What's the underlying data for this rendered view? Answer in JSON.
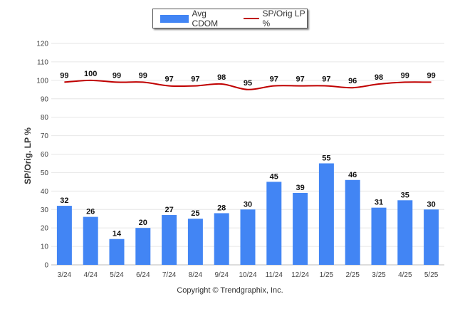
{
  "chart_data": {
    "type": "bar",
    "title": "",
    "xlabel": "",
    "ylabel": "SP/Orig. LP %",
    "ylim": [
      0,
      120
    ],
    "yticks": [
      0,
      10,
      20,
      30,
      40,
      50,
      60,
      70,
      80,
      90,
      100,
      110,
      120
    ],
    "grid": true,
    "legend_position": "top-center",
    "categories": [
      "3/24",
      "4/24",
      "5/24",
      "6/24",
      "7/24",
      "8/24",
      "9/24",
      "10/24",
      "11/24",
      "12/24",
      "1/25",
      "2/25",
      "3/25",
      "4/25",
      "5/25"
    ],
    "series": [
      {
        "name": "Avg CDOM",
        "type": "bar",
        "color": "#4285f4",
        "values": [
          32,
          26,
          14,
          20,
          27,
          25,
          28,
          30,
          45,
          39,
          55,
          46,
          31,
          35,
          30
        ]
      },
      {
        "name": "SP/Orig LP %",
        "type": "line",
        "color": "#c00000",
        "values": [
          99,
          100,
          99,
          99,
          97,
          97,
          98,
          95,
          97,
          97,
          97,
          96,
          98,
          99,
          99
        ]
      }
    ]
  },
  "footer": {
    "copyright": "Copyright © Trendgraphix, Inc."
  }
}
